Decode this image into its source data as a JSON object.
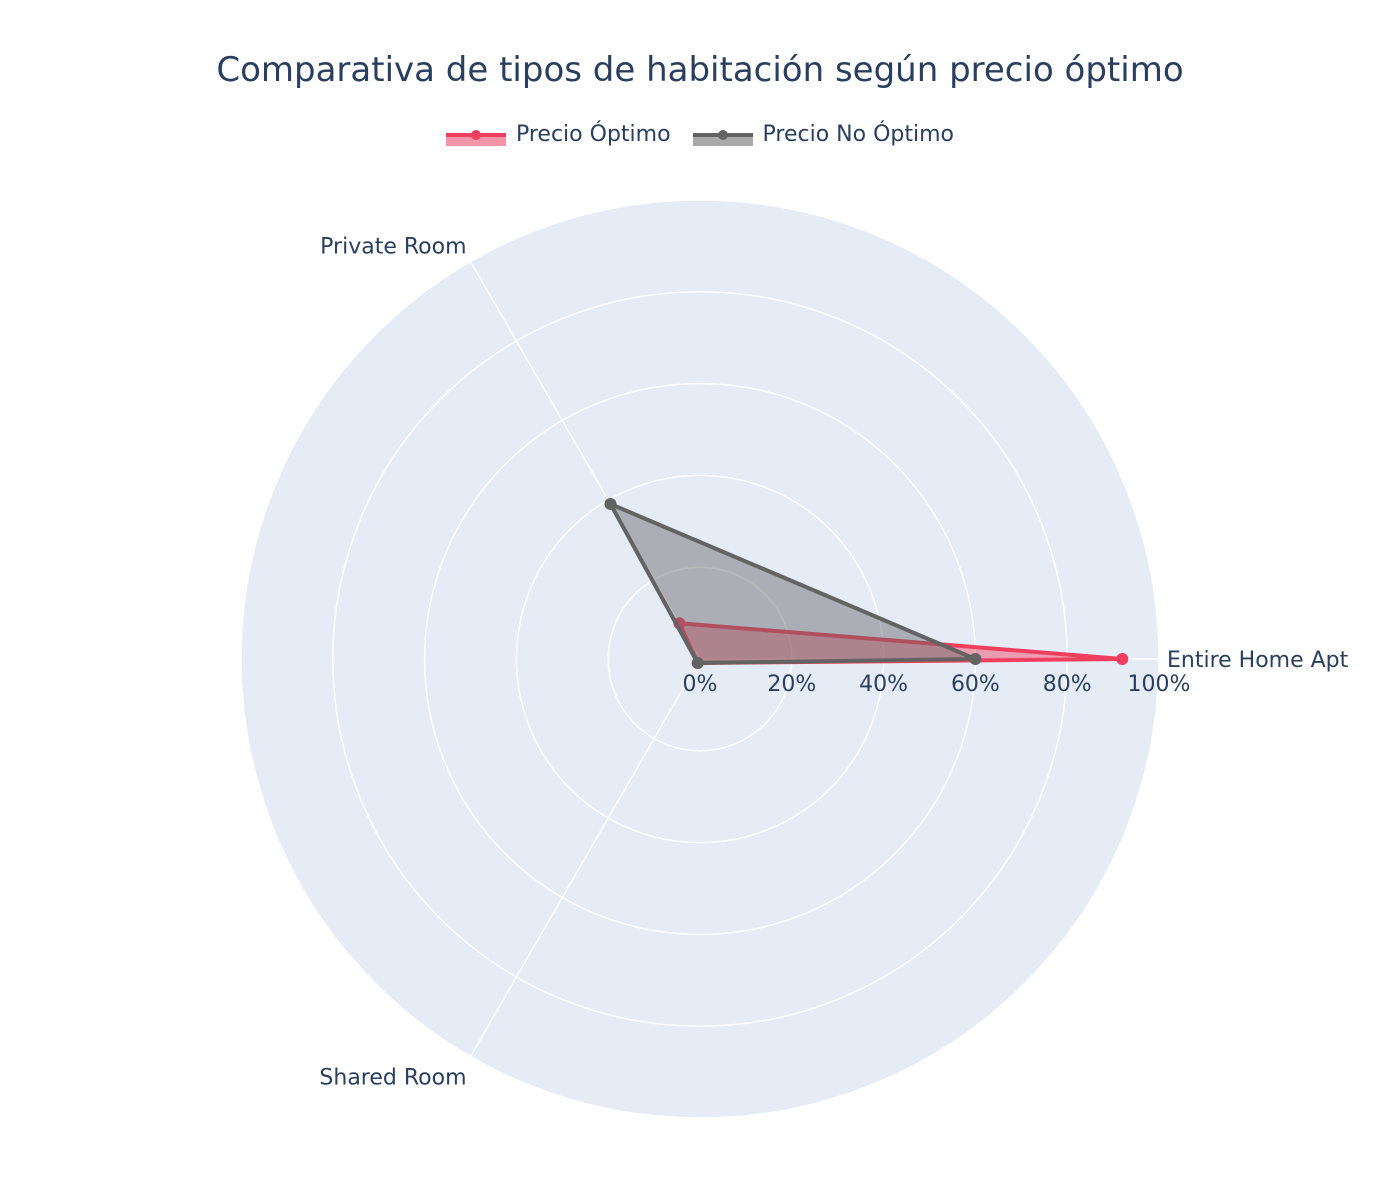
{
  "chart_data": {
    "type": "radar",
    "title": "Comparativa de tipos de habitación según precio óptimo",
    "categories": [
      "Entire Home Apt",
      "Private Room",
      "Shared Room"
    ],
    "radial_range": [
      0,
      100
    ],
    "radial_ticks": [
      0,
      20,
      40,
      60,
      80,
      100
    ],
    "radial_tick_labels": [
      "0%",
      "20%",
      "40%",
      "60%",
      "80%",
      "100%"
    ],
    "legend_position": "top-center",
    "grid": true,
    "series": [
      {
        "name": "Precio Óptimo",
        "values": [
          92,
          9,
          1
        ],
        "color": "#ef3e5e",
        "fill": "rgba(239,62,94,0.45)"
      },
      {
        "name": "Precio No Óptimo",
        "values": [
          60,
          39,
          1
        ],
        "color": "#636363",
        "fill": "rgba(99,99,99,0.45)"
      }
    ],
    "colors": {
      "polar_bg": "#e5ecf6",
      "grid": "#ffffff",
      "text": "#2a3f5f"
    }
  }
}
